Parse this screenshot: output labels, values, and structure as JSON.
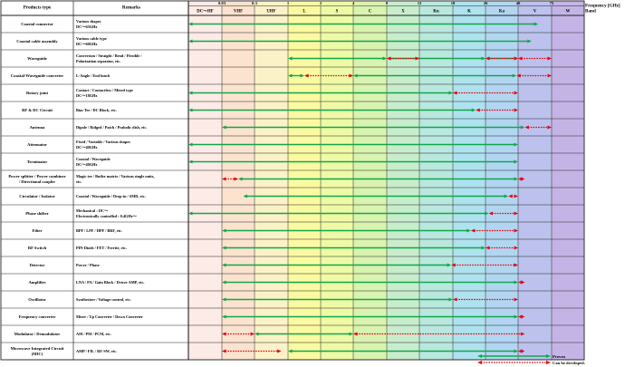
{
  "header": {
    "products_col": "Products type",
    "remarks_col": "Remarks",
    "freq_label": "Frequency [GHz]",
    "band_label": "Band"
  },
  "freq_ticks": [
    "0.03",
    "0.3",
    "1",
    "2",
    "4",
    "8",
    "12",
    "18",
    "26",
    "40",
    "75"
  ],
  "bands": [
    "DC〜HF",
    "VHF",
    "UHF",
    "L",
    "S",
    "C",
    "X",
    "Ku",
    "K",
    "Ka",
    "V",
    "W"
  ],
  "band_colors": [
    "#fcebe6",
    "#fbe3cf",
    "#fbf2c8",
    "#fbfaa2",
    "#eefaa6",
    "#d9f3b0",
    "#c8edcd",
    "#b9e8de",
    "#afe2ef",
    "#b2d6f1",
    "#bcc2ed",
    "#c4b4e6"
  ],
  "rows": [
    {
      "product": [
        "Coaxial connector"
      ],
      "remarks": [
        "Various shapes",
        "DC〜65GHz"
      ],
      "proven": [
        [
          0,
          10.6
        ]
      ],
      "dev": []
    },
    {
      "product": [
        "Coaxial cable assembly"
      ],
      "remarks": [
        "Various cable type",
        "DC〜60GHz"
      ],
      "proven": [
        [
          0,
          10.4
        ]
      ],
      "dev": []
    },
    {
      "product": [
        "Waveguide"
      ],
      "remarks": [
        "Conversion / Straight / Bend / Flexible /",
        "Polarization separator, etc."
      ],
      "proven": [
        [
          3,
          6
        ],
        [
          6,
          9
        ],
        [
          9,
          10
        ]
      ],
      "dev": [
        [
          6,
          7
        ],
        [
          9,
          10
        ],
        [
          10,
          11
        ]
      ]
    },
    {
      "product": [
        "Coaxial-Waveguide converter"
      ],
      "remarks": [
        "L-Angle / End lunch"
      ],
      "proven": [
        [
          3,
          3.5
        ],
        [
          5,
          9.95
        ]
      ],
      "dev": [
        [
          3.5,
          5
        ],
        [
          9.95,
          11
        ]
      ]
    },
    {
      "product": [
        "Rotary joint"
      ],
      "remarks": [
        "Contact / Contactless / Mixed type",
        "DC〜18GHz"
      ],
      "proven": [
        [
          0,
          8
        ]
      ],
      "dev": [
        [
          8,
          10
        ]
      ]
    },
    {
      "product": [
        "RF & DC Circuit"
      ],
      "remarks": [
        "Bias Tee / DC Block, etc."
      ],
      "proven": [
        [
          0,
          8.7
        ]
      ],
      "dev": [
        [
          8.7,
          10
        ]
      ]
    },
    {
      "product": [
        "Antenna"
      ],
      "remarks": [
        "Dipole / Ridged / Patch / Prabolic dish, etc."
      ],
      "proven": [
        [
          1,
          10.2
        ]
      ],
      "dev": [
        [
          10.2,
          11
        ]
      ]
    },
    {
      "product": [
        "Attenuator"
      ],
      "remarks": [
        "Fixed / Variable / Various shapes",
        "DC〜40GHz"
      ],
      "proven": [
        [
          0,
          10
        ]
      ],
      "dev": []
    },
    {
      "product": [
        "Terminator"
      ],
      "remarks": [
        "Coaxial / Waveguide",
        "DC〜40GHz"
      ],
      "proven": [
        [
          0,
          10
        ]
      ],
      "dev": []
    },
    {
      "product": [
        "Power splitter / Power combiner",
        "/ Directional coupler"
      ],
      "remarks": [
        "Magic tee / Butler matrix / Various single units,",
        "etc."
      ],
      "proven": [
        [
          1.5,
          10
        ]
      ],
      "dev": [
        [
          1,
          1.5
        ],
        [
          10,
          10.2
        ]
      ]
    },
    {
      "product": [
        "Circulator / Isolator"
      ],
      "remarks": [
        "Coaxial / Waveguide / Drop-in / SMD, etc."
      ],
      "proven": [
        [
          1.65,
          9.7
        ]
      ],
      "dev": [
        [
          9.7,
          10
        ]
      ]
    },
    {
      "product": [
        "Phase shifter"
      ],
      "remarks": [
        "Mechanical : DC〜",
        "Electronically controlled : 0.4GHz〜"
      ],
      "proven": [
        [
          0,
          9.1
        ]
      ],
      "dev": [
        [
          9.1,
          10
        ]
      ]
    },
    {
      "product": [
        "Filter"
      ],
      "remarks": [
        "BPF / LPF / HPF / BRF, etc."
      ],
      "proven": [
        [
          1,
          8.55
        ]
      ],
      "dev": [
        [
          8.55,
          10
        ]
      ]
    },
    {
      "product": [
        "RF Switch"
      ],
      "remarks": [
        "PIN-Diode / FET / Ferrite, etc."
      ],
      "proven": [
        [
          1,
          9
        ]
      ],
      "dev": [
        [
          9,
          10
        ]
      ]
    },
    {
      "product": [
        "Detector"
      ],
      "remarks": [
        "Power / Phase"
      ],
      "proven": [
        [
          1,
          7.95
        ]
      ],
      "dev": [
        [
          7.95,
          10
        ]
      ]
    },
    {
      "product": [
        "Amplifire"
      ],
      "remarks": [
        "LNA / PA / Gain Block / Driver AMP, etc."
      ],
      "proven": [
        [
          1,
          10
        ]
      ],
      "dev": [
        [
          10,
          10.2
        ]
      ]
    },
    {
      "product": [
        "Oscillator"
      ],
      "remarks": [
        "Synthesizer / Voltage control, etc."
      ],
      "proven": [
        [
          1,
          8
        ]
      ],
      "dev": [
        [
          8,
          10
        ]
      ]
    },
    {
      "product": [
        "Frequency converter"
      ],
      "remarks": [
        "Mixer / Up Converter / Down Converter"
      ],
      "proven": [
        [
          1,
          10
        ]
      ],
      "dev": [
        [
          10,
          10.2
        ]
      ]
    },
    {
      "product": [
        "Modulator / Demodulator"
      ],
      "remarks": [
        "AM / PM / PCM, etc."
      ],
      "proven": [
        [
          2,
          5
        ]
      ],
      "dev": [
        [
          1,
          2
        ],
        [
          5,
          10.2
        ]
      ]
    },
    {
      "product": [
        "Microwave Integrated Circuit",
        "(MIC)"
      ],
      "remarks": [
        "AMP / FIL / RF-SW, etc."
      ],
      "proven": [
        [
          3,
          10
        ]
      ],
      "dev": [
        [
          1,
          2.8
        ],
        [
          10,
          10.2
        ]
      ]
    }
  ],
  "legend": {
    "proven": "Proven",
    "dev": "Can be developed."
  },
  "colors": {
    "proven": "#12a64a",
    "dev": "#e60012",
    "grid": "#222222"
  }
}
